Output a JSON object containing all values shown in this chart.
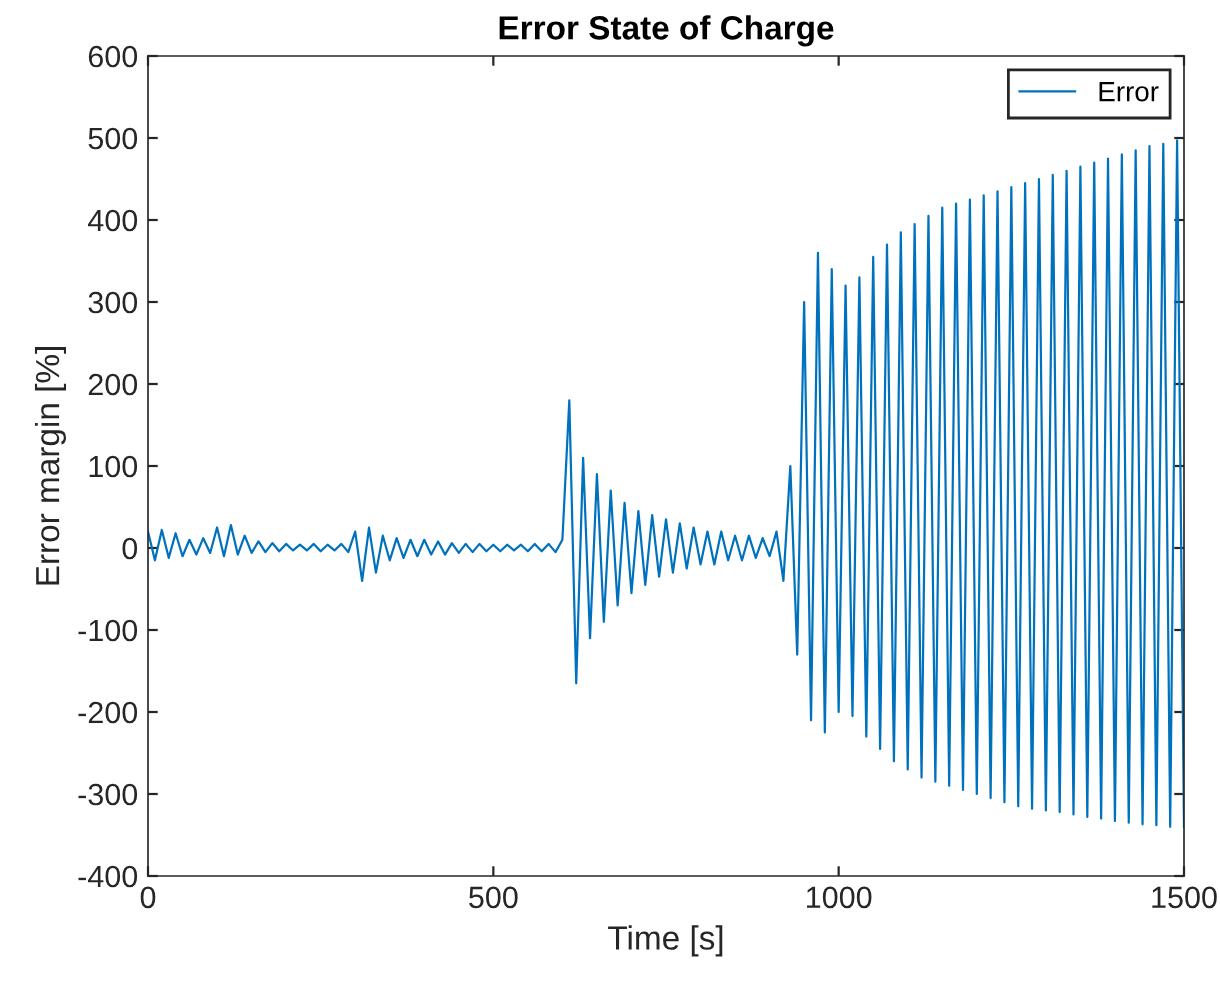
{
  "chart_data": {
    "type": "line",
    "title": "Error State of Charge",
    "xlabel": "Time [s]",
    "ylabel": "Error margin [%]",
    "xlim": [
      0,
      1500
    ],
    "xticks": [
      0,
      500,
      1000,
      1500
    ],
    "ylim": [
      -400,
      600
    ],
    "yticks": [
      -400,
      -300,
      -200,
      -100,
      0,
      100,
      200,
      300,
      400,
      500,
      600
    ],
    "grid": false,
    "legend": "top right",
    "line_style": "solid",
    "marker": "none",
    "series": [
      {
        "name": "Error",
        "color": "#0072bd",
        "x": [
          0,
          10,
          20,
          30,
          40,
          50,
          60,
          70,
          80,
          90,
          100,
          110,
          120,
          130,
          140,
          150,
          160,
          170,
          180,
          190,
          200,
          210,
          220,
          230,
          240,
          250,
          260,
          270,
          280,
          290,
          300,
          310,
          320,
          330,
          340,
          350,
          360,
          370,
          380,
          390,
          400,
          410,
          420,
          430,
          440,
          450,
          460,
          470,
          480,
          490,
          500,
          510,
          520,
          530,
          540,
          550,
          560,
          570,
          580,
          590,
          600,
          610,
          620,
          630,
          640,
          650,
          660,
          670,
          680,
          690,
          700,
          710,
          720,
          730,
          740,
          750,
          760,
          770,
          780,
          790,
          800,
          810,
          820,
          830,
          840,
          850,
          860,
          870,
          880,
          890,
          900,
          910,
          920,
          930,
          940,
          950,
          960,
          970,
          980,
          990,
          1000,
          1010,
          1020,
          1030,
          1040,
          1050,
          1060,
          1070,
          1080,
          1090,
          1100,
          1110,
          1120,
          1130,
          1140,
          1150,
          1160,
          1170,
          1180,
          1190,
          1200,
          1210,
          1220,
          1230,
          1240,
          1250,
          1260,
          1270,
          1280,
          1290,
          1300,
          1310,
          1320,
          1330,
          1340,
          1350,
          1360,
          1370,
          1380,
          1390,
          1400,
          1410,
          1420,
          1430,
          1440,
          1450,
          1460,
          1470,
          1480,
          1490,
          1500
        ],
        "values": [
          20,
          -15,
          22,
          -12,
          18,
          -10,
          10,
          -8,
          12,
          -6,
          25,
          -10,
          28,
          -8,
          15,
          -6,
          8,
          -5,
          6,
          -4,
          5,
          -3,
          4,
          -3,
          5,
          -4,
          4,
          -3,
          5,
          -5,
          20,
          -40,
          25,
          -30,
          15,
          -15,
          12,
          -12,
          10,
          -10,
          10,
          -8,
          8,
          -8,
          6,
          -6,
          5,
          -5,
          5,
          -4,
          4,
          -4,
          4,
          -3,
          4,
          -4,
          5,
          -4,
          5,
          -5,
          10,
          180,
          -165,
          110,
          -110,
          90,
          -90,
          70,
          -70,
          55,
          -55,
          45,
          -45,
          40,
          -35,
          35,
          -30,
          30,
          -25,
          25,
          -20,
          20,
          -20,
          20,
          -15,
          15,
          -15,
          15,
          -12,
          12,
          -10,
          20,
          -40,
          100,
          -130,
          300,
          -210,
          360,
          -225,
          340,
          -200,
          320,
          -205,
          330,
          -230,
          355,
          -245,
          370,
          -260,
          385,
          -270,
          395,
          -280,
          405,
          -285,
          415,
          -290,
          420,
          -295,
          425,
          -300,
          430,
          -305,
          435,
          -310,
          440,
          -315,
          445,
          -318,
          450,
          -320,
          455,
          -322,
          460,
          -325,
          465,
          -328,
          470,
          -330,
          475,
          -333,
          480,
          -335,
          485,
          -337,
          490,
          -338,
          493,
          -340,
          497,
          -340
        ]
      }
    ]
  }
}
